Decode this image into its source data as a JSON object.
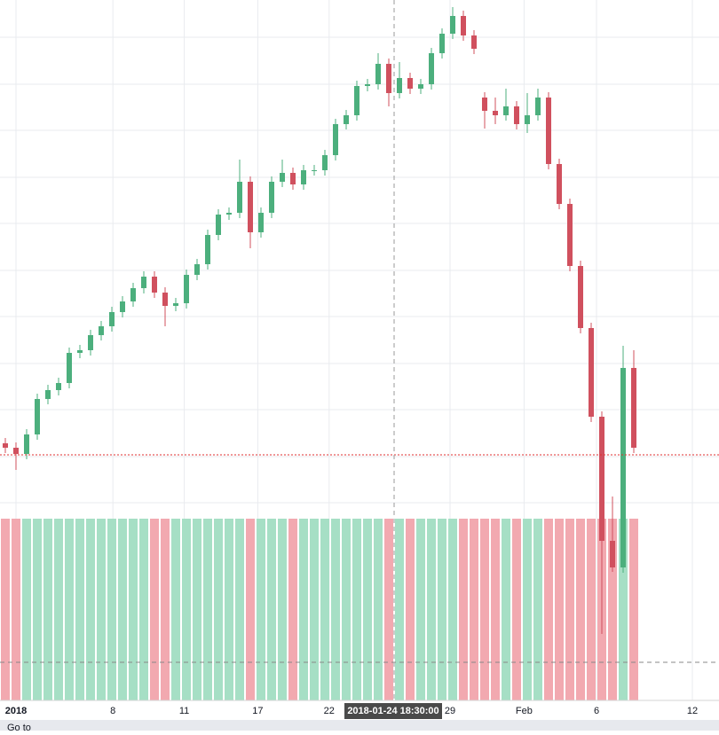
{
  "chart_data": {
    "type": "candlestick",
    "open": [
      290,
      285,
      278,
      300,
      340,
      350,
      358,
      392,
      395,
      412,
      422,
      438,
      450,
      465,
      478,
      460,
      445,
      448,
      480,
      492,
      525,
      548,
      550,
      585,
      528,
      550,
      585,
      595,
      582,
      598,
      598,
      615,
      650,
      660,
      693,
      695,
      718,
      685,
      702,
      690,
      695,
      730,
      752,
      772,
      750,
      680,
      665,
      660,
      670,
      650,
      660,
      680,
      605,
      560,
      490,
      420,
      320,
      180,
      150,
      375
    ],
    "high": [
      296,
      291,
      306,
      346,
      356,
      364,
      398,
      401,
      418,
      428,
      444,
      456,
      471,
      484,
      484,
      466,
      454,
      486,
      498,
      531,
      554,
      556,
      610,
      591,
      556,
      591,
      610,
      601,
      604,
      604,
      621,
      656,
      666,
      699,
      701,
      730,
      724,
      720,
      708,
      701,
      736,
      758,
      782,
      778,
      756,
      686,
      680,
      690,
      676,
      685,
      690,
      686,
      611,
      566,
      496,
      426,
      326,
      230,
      400,
      395
    ],
    "low": [
      279,
      260,
      272,
      294,
      334,
      344,
      352,
      386,
      389,
      406,
      416,
      432,
      444,
      459,
      454,
      422,
      439,
      442,
      474,
      486,
      519,
      542,
      544,
      510,
      522,
      544,
      579,
      576,
      576,
      592,
      592,
      609,
      644,
      654,
      687,
      689,
      670,
      679,
      684,
      684,
      689,
      724,
      746,
      744,
      729,
      645,
      650,
      654,
      644,
      640,
      654,
      599,
      554,
      484,
      414,
      314,
      75,
      145,
      144,
      279
    ],
    "close": [
      285,
      278,
      300,
      340,
      350,
      358,
      392,
      395,
      412,
      422,
      438,
      450,
      465,
      478,
      460,
      445,
      448,
      480,
      492,
      525,
      548,
      550,
      585,
      528,
      550,
      585,
      595,
      582,
      598,
      598,
      615,
      650,
      660,
      693,
      695,
      718,
      685,
      702,
      690,
      695,
      730,
      752,
      772,
      750,
      735,
      665,
      660,
      670,
      650,
      660,
      680,
      605,
      560,
      490,
      420,
      320,
      180,
      150,
      375,
      285
    ],
    "volume": [
      100,
      100,
      100,
      100,
      100,
      100,
      100,
      100,
      100,
      100,
      100,
      100,
      100,
      100,
      100,
      100,
      100,
      100,
      100,
      100,
      100,
      100,
      100,
      100,
      100,
      100,
      100,
      100,
      100,
      100,
      100,
      100,
      100,
      100,
      100,
      100,
      100,
      100,
      100,
      100,
      100,
      100,
      100,
      100,
      100,
      100,
      100,
      100,
      100,
      100,
      100,
      100,
      100,
      100,
      100,
      100,
      100,
      100,
      100,
      100
    ],
    "xlim": [
      -0.5,
      67
    ],
    "ylim": [
      0,
      790
    ],
    "volume_lim": [
      0,
      100
    ],
    "xticks": [
      {
        "value": 1,
        "label": "2018"
      },
      {
        "value": 10.1,
        "label": "8"
      },
      {
        "value": 16.8,
        "label": "11"
      },
      {
        "value": 23.7,
        "label": "17"
      },
      {
        "value": 30.4,
        "label": "22"
      },
      {
        "value": 41.75,
        "label": "29"
      },
      {
        "value": 48.7,
        "label": "Feb"
      },
      {
        "value": 55.5,
        "label": "6"
      },
      {
        "value": 64.5,
        "label": "12"
      }
    ],
    "ygrid": [
      748,
      695,
      643,
      590,
      538,
      485,
      433,
      380,
      328,
      275,
      223
    ],
    "grid": true,
    "up_color": "#4caf7d",
    "down_color": "#d0505e",
    "volume_up_color": "#a6dfc5",
    "volume_down_color": "#f2a9b0",
    "price_line": 277,
    "price_line_color": "#e03030",
    "volume_line": 21,
    "crosshair": {
      "x": 36.5,
      "label": "2018-01-24 18:30:00"
    }
  },
  "footer": {
    "goto": "Go to"
  }
}
